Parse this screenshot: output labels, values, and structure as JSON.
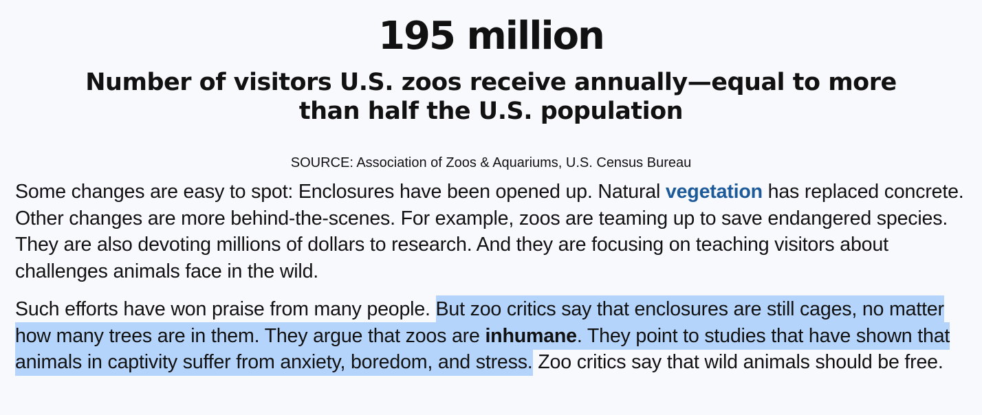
{
  "statistic": {
    "value": "195 million",
    "caption": "Number of visitors U.S. zoos receive annually—equal to more than half the U.S. population",
    "source": "SOURCE: Association of Zoos & Aquariums, U.S. Census Bureau"
  },
  "paragraph_1": {
    "before_link": "Some changes are easy to spot: Enclosures have been opened up. Natural ",
    "link_word": "vegetation",
    "after_link": " has replaced concrete. Other changes are more behind-the-scenes. For example, zoos are teaming up to save endangered species. They are also devoting millions of dollars to research. And they are focusing on teaching visitors about challenges animals face in the wild."
  },
  "paragraph_2": {
    "plain_start": "Such efforts have won praise from many people. ",
    "highlight_start": "But zoo critics say that enclosures are still cages, no matter how many trees are in them. They argue that zoos are ",
    "bold_word": "inhumane",
    "highlight_end": ". They point to studies that have shown that animals in captivity suffer from anxiety, boredom, and stress.",
    "plain_end": " Zoo critics say that wild animals should be free."
  },
  "colors": {
    "background": "#f8f9fd",
    "vocabulary_link": "#1d5a9a",
    "text_selection_highlight": "#b5d4fb"
  }
}
